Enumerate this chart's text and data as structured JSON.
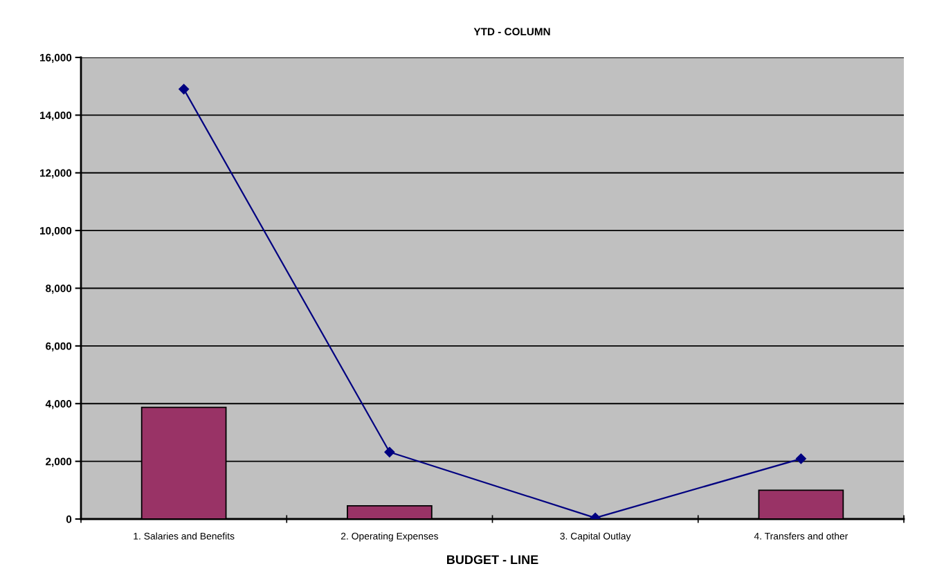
{
  "chart_data": {
    "type": "bar",
    "title": "YTD - COLUMN",
    "xlabel": "BUDGET - LINE",
    "categories": [
      "1. Salaries and Benefits",
      "2. Operating Expenses",
      "3. Capital Outlay",
      "4. Transfers and other"
    ],
    "series": [
      {
        "color": "#993366",
        "values": [
          3870,
          460,
          null,
          1000
        ]
      },
      {
        "type": "line",
        "color": "#000080",
        "values": [
          14900,
          2320,
          40,
          2090
        ]
      }
    ],
    "ylim": [
      0,
      16000
    ],
    "yticks": [
      {
        "value": 0,
        "label": "0"
      },
      {
        "value": 2000,
        "label": "2,000"
      },
      {
        "value": 4000,
        "label": "4,000"
      },
      {
        "value": 6000,
        "label": "6,000"
      },
      {
        "value": 8000,
        "label": "8,000"
      },
      {
        "value": 10000,
        "label": "10,000"
      },
      {
        "value": 12000,
        "label": "12,000"
      },
      {
        "value": 14000,
        "label": "14,000"
      },
      {
        "value": 16000,
        "label": "16,000"
      }
    ],
    "grid": "y",
    "marker": "diamond",
    "line_style": "solid"
  }
}
